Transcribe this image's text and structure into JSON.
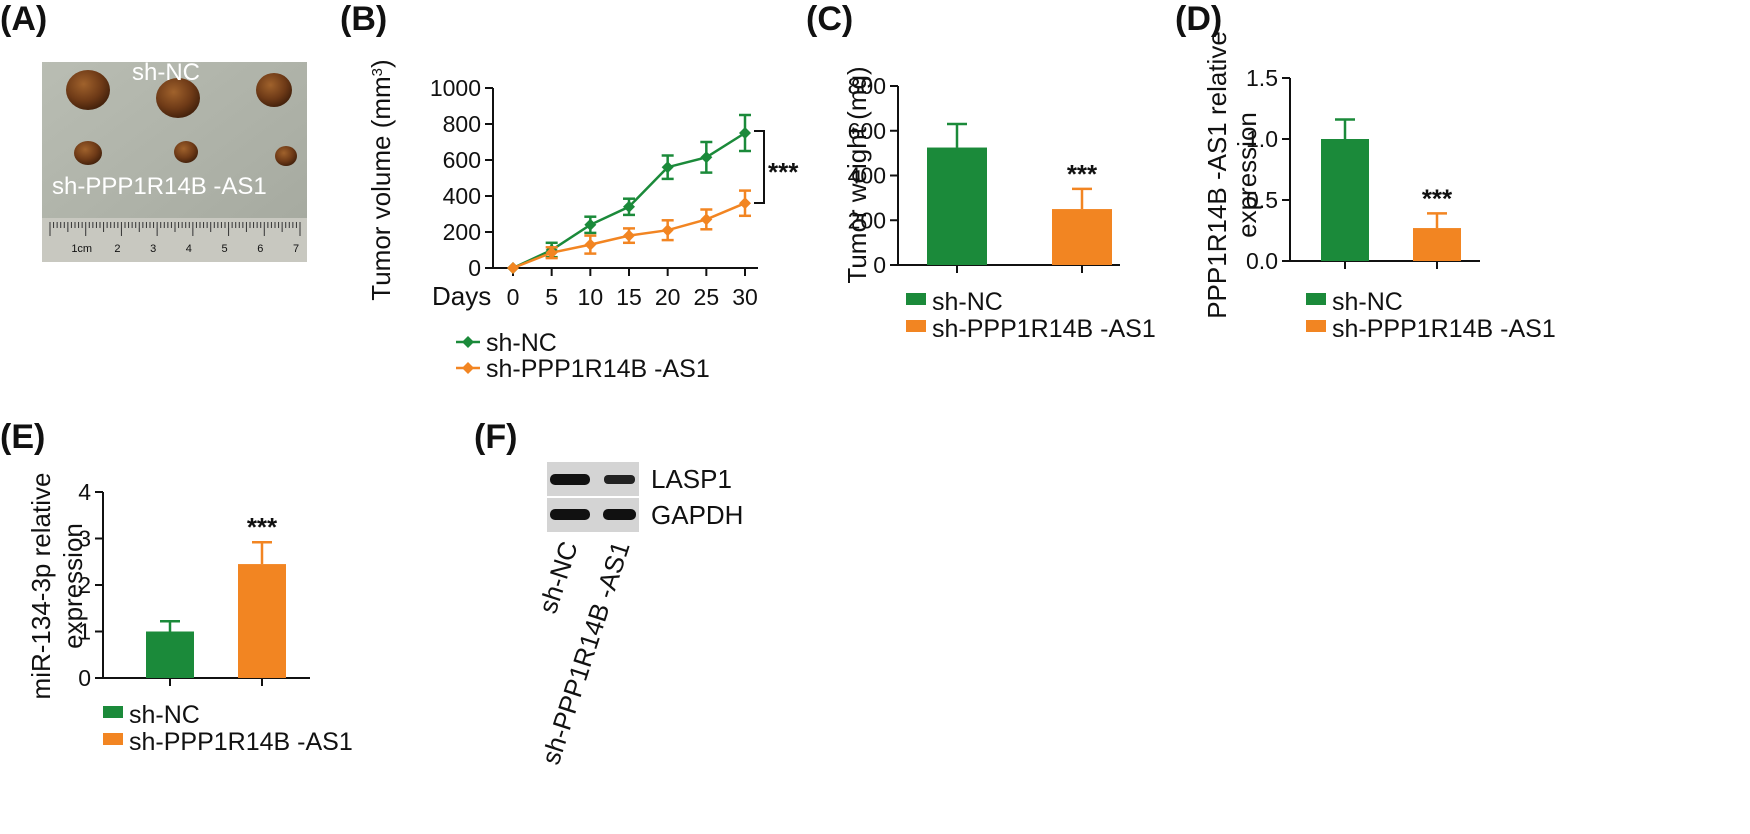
{
  "colors": {
    "green": "#1b8a3a",
    "orange": "#f28522",
    "axis": "#111111"
  },
  "panel_labels": [
    "(A)",
    "(B)",
    "(C)",
    "(D)",
    "(E)",
    "(F)"
  ],
  "photo": {
    "top_label": "sh-NC",
    "bottom_label": "sh-PPP1R14B -AS1",
    "ruler_labels": [
      "1cm",
      "2",
      "3",
      "4",
      "5",
      "6",
      "7"
    ]
  },
  "chart_data": [
    {
      "id": "B",
      "type": "line",
      "title": "",
      "xlabel": "Days",
      "ylabel": "Tumor volume (mm³)",
      "ylabel_main": "Tumor volume (mm",
      "ylabel_sup": "3",
      "ylabel_close": ")",
      "x": [
        0,
        5,
        10,
        15,
        20,
        25,
        30
      ],
      "x_ticks": [
        "0",
        "5",
        "10",
        "15",
        "20",
        "25",
        "30"
      ],
      "y_ticks": [
        "0",
        "200",
        "400",
        "600",
        "800",
        "1000"
      ],
      "ylim": [
        0,
        1000
      ],
      "series": [
        {
          "name": "sh-NC",
          "values": [
            0,
            100,
            240,
            340,
            560,
            615,
            750
          ],
          "errors": [
            0,
            40,
            45,
            45,
            65,
            85,
            100
          ]
        },
        {
          "name": "sh-PPP1R14B -AS1",
          "values": [
            0,
            85,
            130,
            180,
            210,
            270,
            360
          ],
          "errors": [
            0,
            30,
            50,
            40,
            55,
            55,
            70
          ]
        }
      ],
      "annotation": "***"
    },
    {
      "id": "C",
      "type": "bar",
      "ylabel": "Tumor weight (mg)",
      "categories": [
        "sh-NC",
        "sh-PPP1R14B -AS1"
      ],
      "values": [
        525,
        250
      ],
      "errors": [
        105,
        90
      ],
      "y_ticks": [
        "0",
        "200",
        "400",
        "600",
        "800"
      ],
      "ylim": [
        0,
        800
      ],
      "annotation": "***"
    },
    {
      "id": "D",
      "type": "bar",
      "ylabel_line1": "PPP1R14B -AS1 relative",
      "ylabel_line2": "expression",
      "categories": [
        "sh-NC",
        "sh-PPP1R14B -AS1"
      ],
      "values": [
        1.0,
        0.27
      ],
      "errors": [
        0.16,
        0.12
      ],
      "y_ticks": [
        "0.0",
        "0.5",
        "1.0",
        "1.5"
      ],
      "ylim": [
        0,
        1.5
      ],
      "annotation": "***"
    },
    {
      "id": "E",
      "type": "bar",
      "ylabel_line1": "miR-134-3p relative",
      "ylabel_line2": "expression",
      "categories": [
        "sh-NC",
        "sh-PPP1R14B -AS1"
      ],
      "values": [
        1.0,
        2.45
      ],
      "errors": [
        0.22,
        0.47
      ],
      "y_ticks": [
        "0",
        "1",
        "2",
        "3",
        "4"
      ],
      "ylim": [
        0,
        4
      ],
      "annotation": "***"
    }
  ],
  "western_blot": {
    "proteins": [
      "LASP1",
      "GAPDH"
    ],
    "lanes": [
      "sh-NC",
      "sh-PPP1R14B -AS1"
    ]
  }
}
